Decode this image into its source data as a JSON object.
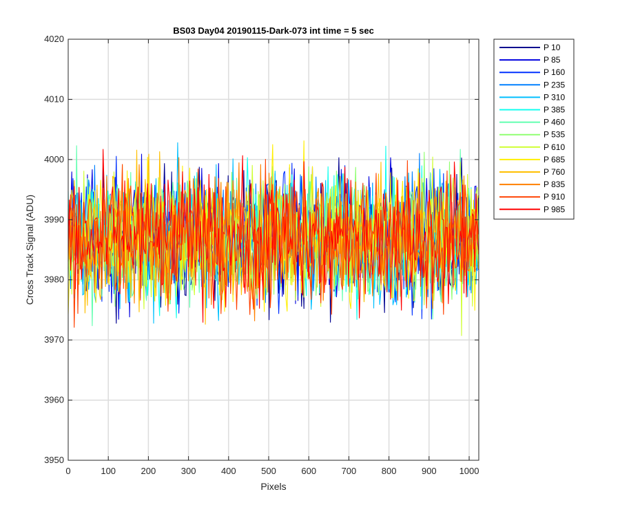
{
  "chart_data": {
    "type": "line",
    "title": "BS03 Day04 20190115-Dark-073 int time = 5 sec",
    "xlabel": "Pixels",
    "ylabel": "Cross Track Signal (ADU)",
    "xlim": [
      0,
      1024
    ],
    "ylim": [
      3950,
      4020
    ],
    "xticks": [
      0,
      100,
      200,
      300,
      400,
      500,
      600,
      700,
      800,
      900,
      1000
    ],
    "yticks": [
      3950,
      3960,
      3970,
      3980,
      3990,
      4000,
      4010,
      4020
    ],
    "grid": true,
    "legend_position": "outside-top-right",
    "center_value": 3987,
    "noise_spread": 10,
    "series": [
      {
        "name": "P 10",
        "color": "#00008f"
      },
      {
        "name": "P 85",
        "color": "#0000df"
      },
      {
        "name": "P 160",
        "color": "#0030ff"
      },
      {
        "name": "P 235",
        "color": "#0080ff"
      },
      {
        "name": "P 310",
        "color": "#00bfff"
      },
      {
        "name": "P 385",
        "color": "#10ffef"
      },
      {
        "name": "P 460",
        "color": "#60ffaf"
      },
      {
        "name": "P 535",
        "color": "#8fff70"
      },
      {
        "name": "P 610",
        "color": "#cfff30"
      },
      {
        "name": "P 685",
        "color": "#ffef00"
      },
      {
        "name": "P 760",
        "color": "#ffbf00"
      },
      {
        "name": "P 835",
        "color": "#ff7f00"
      },
      {
        "name": "P 910",
        "color": "#ff4000"
      },
      {
        "name": "P 985",
        "color": "#ff0000"
      }
    ]
  }
}
